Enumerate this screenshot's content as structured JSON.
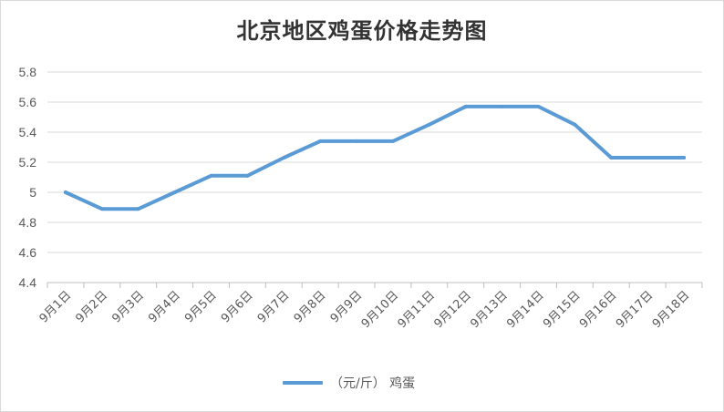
{
  "chart_data": {
    "type": "line",
    "title": "北京地区鸡蛋价格走势图",
    "categories": [
      "9月1日",
      "9月2日",
      "9月3日",
      "9月4日",
      "9月5日",
      "9月6日",
      "9月7日",
      "9月8日",
      "9月9日",
      "9月10日",
      "9月11日",
      "9月12日",
      "9月13日",
      "9月14日",
      "9月15日",
      "9月16日",
      "9月17日",
      "9月18日"
    ],
    "series": [
      {
        "name": "（元/斤） 鸡蛋",
        "values": [
          5.0,
          4.89,
          4.89,
          5.0,
          5.11,
          5.11,
          5.23,
          5.34,
          5.34,
          5.34,
          5.45,
          5.57,
          5.57,
          5.57,
          5.45,
          5.23,
          5.23,
          5.23
        ],
        "color": "#5b9bd5"
      }
    ],
    "y_ticks": [
      "4.4",
      "4.6",
      "4.8",
      "5",
      "5.2",
      "5.4",
      "5.6",
      "5.8"
    ],
    "ylim": [
      4.4,
      5.8
    ],
    "grid": true,
    "legend_position": "bottom"
  }
}
